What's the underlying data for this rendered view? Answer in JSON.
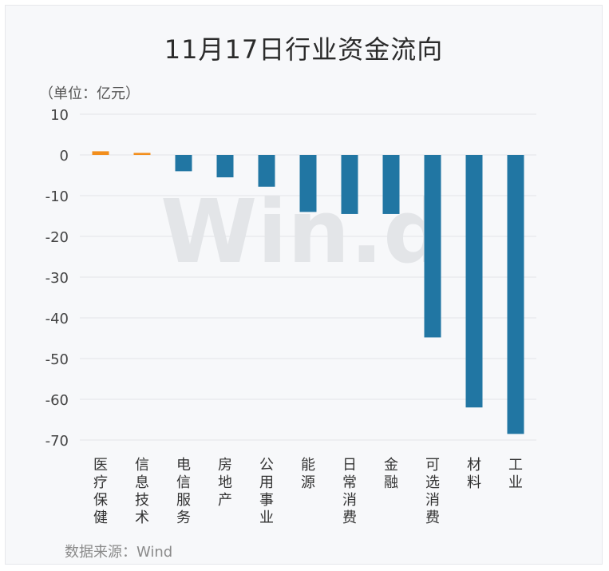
{
  "title": "11月17日行业资金流向",
  "unit_label": "（单位：亿元）",
  "source": "数据来源：Wind",
  "watermark": "Win.d",
  "colors": {
    "positive": "#f28e1c",
    "negative": "#2176a3",
    "grid": "#e3e5e8"
  },
  "chart_data": {
    "type": "bar",
    "title": "11月17日行业资金流向",
    "ylabel": "（单位：亿元）",
    "xlabel": "",
    "categories": [
      "医疗保健",
      "信息技术",
      "电信服务",
      "房地产",
      "公用事业",
      "能源",
      "日常消费",
      "金融",
      "可选消费",
      "材料",
      "工业"
    ],
    "values": [
      0.9,
      0.5,
      -4.0,
      -5.5,
      -7.8,
      -14.0,
      -14.5,
      -14.5,
      -44.8,
      -62.0,
      -68.5
    ],
    "ylim": [
      -70,
      10
    ],
    "yticks": [
      10,
      0,
      -10,
      -20,
      -30,
      -40,
      -50,
      -60,
      -70
    ],
    "grid": true,
    "legend": "none"
  }
}
